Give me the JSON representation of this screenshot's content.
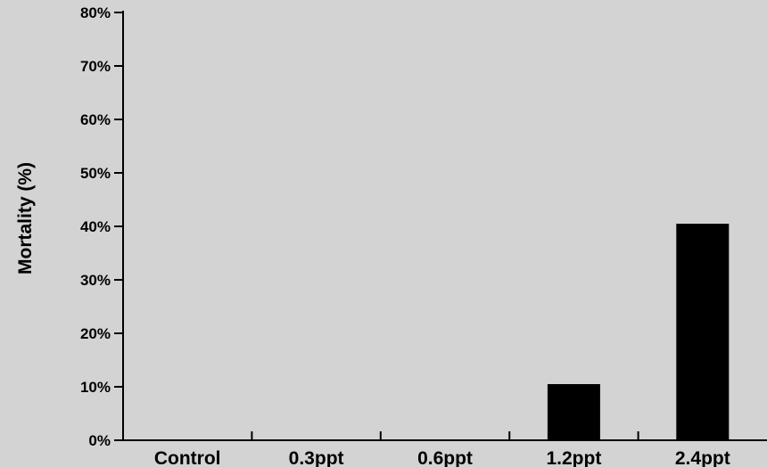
{
  "chart_data": {
    "type": "bar",
    "title": "",
    "xlabel": "",
    "ylabel": "Mortality (%)",
    "categories": [
      "Control",
      "0.3ppt",
      "0.6ppt",
      "1.2ppt",
      "2.4ppt"
    ],
    "values": [
      0,
      0,
      0,
      10.5,
      40.5
    ],
    "ylim": [
      0,
      80
    ],
    "yticks": [
      0,
      10,
      20,
      30,
      40,
      50,
      60,
      70,
      80
    ],
    "ytick_labels": [
      "0%",
      "10%",
      "20%",
      "30%",
      "40%",
      "50%",
      "60%",
      "70%",
      "80%"
    ],
    "grid": false,
    "legend": "none",
    "colors": {
      "plot_background": "#d3d3d3",
      "bar": "#000000",
      "axis": "#000000"
    }
  }
}
